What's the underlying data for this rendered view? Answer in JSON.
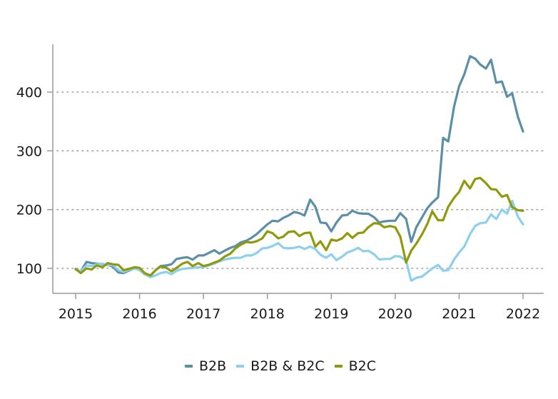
{
  "chart_data": {
    "type": "line",
    "title": "",
    "xlabel": "",
    "ylabel": "",
    "xlim": [
      2015,
      2022
    ],
    "ylim": [
      60,
      480
    ],
    "yticks": [
      100,
      200,
      300,
      400
    ],
    "xticks": [
      "2015",
      "2016",
      "2017",
      "2018",
      "2019",
      "2020",
      "2021",
      "2022"
    ],
    "grid": "horizontal dotted",
    "legend_position": "bottom",
    "series": [
      {
        "name": "B2B",
        "color": "#5b8fa8",
        "x": [
          2015.0,
          2015.08,
          2015.17,
          2015.25,
          2015.33,
          2015.42,
          2015.5,
          2015.58,
          2015.67,
          2015.75,
          2015.83,
          2015.92,
          2016.0,
          2016.08,
          2016.17,
          2016.25,
          2016.33,
          2016.42,
          2016.5,
          2016.58,
          2016.67,
          2016.75,
          2016.83,
          2016.92,
          2017.0,
          2017.08,
          2017.17,
          2017.25,
          2017.33,
          2017.42,
          2017.5,
          2017.58,
          2017.67,
          2017.75,
          2017.83,
          2017.92,
          2018.0,
          2018.08,
          2018.17,
          2018.25,
          2018.33,
          2018.42,
          2018.5,
          2018.58,
          2018.67,
          2018.75,
          2018.83,
          2018.92,
          2019.0,
          2019.08,
          2019.17,
          2019.25,
          2019.33,
          2019.42,
          2019.5,
          2019.58,
          2019.67,
          2019.75,
          2019.83,
          2019.92,
          2020.0,
          2020.08,
          2020.17,
          2020.25,
          2020.33,
          2020.42,
          2020.5,
          2020.58,
          2020.67,
          2020.75,
          2020.83,
          2020.92,
          2021.0,
          2021.08,
          2021.17,
          2021.25,
          2021.33,
          2021.42,
          2021.5,
          2021.58,
          2021.67,
          2021.75,
          2021.83,
          2021.92,
          2022.0
        ],
        "values": [
          98,
          95,
          111,
          109,
          108,
          107,
          106,
          103,
          93,
          92,
          96,
          100,
          98,
          90,
          87,
          97,
          104,
          105,
          107,
          116,
          118,
          119,
          115,
          122,
          122,
          126,
          131,
          125,
          130,
          135,
          138,
          144,
          147,
          152,
          158,
          167,
          175,
          181,
          180,
          186,
          190,
          196,
          194,
          190,
          217,
          205,
          178,
          177,
          163,
          178,
          190,
          191,
          198,
          194,
          193,
          193,
          187,
          178,
          180,
          181,
          181,
          194,
          184,
          145,
          170,
          187,
          202,
          212,
          221,
          322,
          316,
          375,
          410,
          430,
          461,
          457,
          447,
          440,
          455,
          416,
          418,
          392,
          398,
          358,
          333
        ]
      },
      {
        "name": "B2B & B2C",
        "color": "#8dd0ee",
        "x": [
          2015.0,
          2015.08,
          2015.17,
          2015.25,
          2015.33,
          2015.42,
          2015.5,
          2015.58,
          2015.67,
          2015.75,
          2015.83,
          2015.92,
          2016.0,
          2016.08,
          2016.17,
          2016.25,
          2016.33,
          2016.42,
          2016.5,
          2016.58,
          2016.67,
          2016.75,
          2016.83,
          2016.92,
          2017.0,
          2017.08,
          2017.17,
          2017.25,
          2017.33,
          2017.42,
          2017.5,
          2017.58,
          2017.67,
          2017.75,
          2017.83,
          2017.92,
          2018.0,
          2018.08,
          2018.17,
          2018.25,
          2018.33,
          2018.42,
          2018.5,
          2018.58,
          2018.67,
          2018.75,
          2018.83,
          2018.92,
          2019.0,
          2019.08,
          2019.17,
          2019.25,
          2019.33,
          2019.42,
          2019.5,
          2019.58,
          2019.67,
          2019.75,
          2019.83,
          2019.92,
          2020.0,
          2020.08,
          2020.17,
          2020.25,
          2020.33,
          2020.42,
          2020.5,
          2020.58,
          2020.67,
          2020.75,
          2020.83,
          2020.92,
          2021.0,
          2021.08,
          2021.17,
          2021.25,
          2021.33,
          2021.42,
          2021.5,
          2021.58,
          2021.67,
          2021.75,
          2021.83,
          2021.92,
          2022.0
        ],
        "values": [
          98,
          95,
          105,
          104,
          107,
          108,
          105,
          106,
          97,
          94,
          97,
          100,
          97,
          90,
          85,
          88,
          92,
          94,
          90,
          96,
          99,
          100,
          101,
          102,
          102,
          105,
          108,
          112,
          115,
          117,
          118,
          118,
          122,
          122,
          126,
          134,
          135,
          138,
          143,
          135,
          134,
          135,
          137,
          133,
          137,
          133,
          123,
          118,
          124,
          114,
          120,
          127,
          130,
          135,
          129,
          130,
          124,
          115,
          116,
          116,
          121,
          120,
          113,
          79,
          84,
          86,
          93,
          100,
          106,
          96,
          97,
          115,
          127,
          137,
          158,
          172,
          177,
          178,
          192,
          184,
          200,
          193,
          215,
          188,
          175
        ]
      },
      {
        "name": "B2C",
        "color": "#8e9a0c",
        "x": [
          2015.0,
          2015.08,
          2015.17,
          2015.25,
          2015.33,
          2015.42,
          2015.5,
          2015.58,
          2015.67,
          2015.75,
          2015.83,
          2015.92,
          2016.0,
          2016.08,
          2016.17,
          2016.25,
          2016.33,
          2016.42,
          2016.5,
          2016.58,
          2016.67,
          2016.75,
          2016.83,
          2016.92,
          2017.0,
          2017.08,
          2017.17,
          2017.25,
          2017.33,
          2017.42,
          2017.5,
          2017.58,
          2017.67,
          2017.75,
          2017.83,
          2017.92,
          2018.0,
          2018.08,
          2018.17,
          2018.25,
          2018.33,
          2018.42,
          2018.5,
          2018.58,
          2018.67,
          2018.75,
          2018.83,
          2018.92,
          2019.0,
          2019.08,
          2019.17,
          2019.25,
          2019.33,
          2019.42,
          2019.5,
          2019.58,
          2019.67,
          2019.75,
          2019.83,
          2019.92,
          2020.0,
          2020.08,
          2020.17,
          2020.25,
          2020.33,
          2020.42,
          2020.5,
          2020.58,
          2020.67,
          2020.75,
          2020.83,
          2020.92,
          2021.0,
          2021.08,
          2021.17,
          2021.25,
          2021.33,
          2021.42,
          2021.5,
          2021.58,
          2021.67,
          2021.75,
          2021.83,
          2021.92,
          2022.0
        ],
        "values": [
          99,
          92,
          100,
          98,
          105,
          102,
          109,
          107,
          106,
          97,
          99,
          102,
          101,
          92,
          88,
          97,
          103,
          101,
          95,
          101,
          108,
          111,
          104,
          109,
          104,
          106,
          110,
          113,
          120,
          125,
          134,
          140,
          145,
          144,
          146,
          151,
          163,
          160,
          151,
          154,
          162,
          163,
          155,
          160,
          161,
          137,
          146,
          131,
          149,
          147,
          151,
          160,
          152,
          160,
          161,
          170,
          177,
          176,
          170,
          172,
          170,
          154,
          110,
          130,
          142,
          158,
          175,
          197,
          182,
          182,
          205,
          220,
          230,
          249,
          236,
          252,
          254,
          245,
          235,
          234,
          222,
          225,
          204,
          199,
          198
        ]
      }
    ]
  },
  "axes": {
    "y_labels": [
      "100",
      "200",
      "300",
      "400"
    ],
    "x_labels": [
      "2015",
      "2016",
      "2017",
      "2018",
      "2019",
      "2020",
      "2021",
      "2022"
    ]
  },
  "legend": {
    "items": [
      {
        "label": "B2B",
        "color": "#5b8fa8"
      },
      {
        "label": "B2B & B2C",
        "color": "#8dd0ee"
      },
      {
        "label": "B2C",
        "color": "#8e9a0c"
      }
    ]
  }
}
